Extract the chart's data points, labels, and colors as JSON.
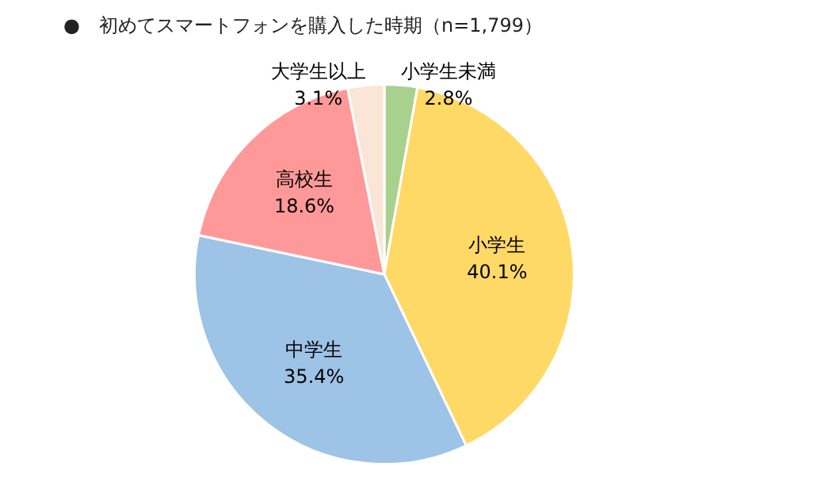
{
  "chart_data": {
    "type": "pie",
    "title": "●　初めてスマートフォンを購入した時期（n=1,799）",
    "categories": [
      "小学生未満",
      "小学生",
      "中学生",
      "高校生",
      "大学生以上"
    ],
    "values": [
      2.8,
      40.1,
      35.4,
      18.6,
      3.1
    ],
    "value_labels": [
      "2.8%",
      "40.1%",
      "35.4%",
      "18.6%",
      "3.1%"
    ],
    "colors": [
      "#a9d18e",
      "#ffd966",
      "#9dc3e6",
      "#ff9999",
      "#fbe5d6"
    ],
    "legend": false
  }
}
